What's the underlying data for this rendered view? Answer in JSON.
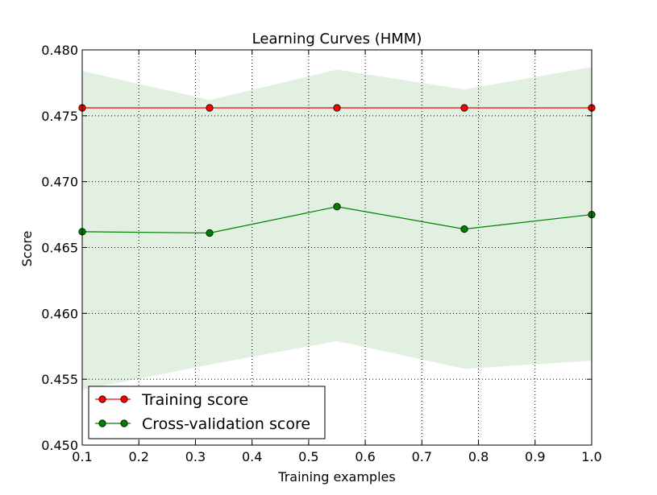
{
  "chart_data": {
    "type": "line",
    "title": "Learning Curves (HMM)",
    "xlabel": "Training examples",
    "ylabel": "Score",
    "xlim": [
      0.1,
      1.0
    ],
    "ylim": [
      0.45,
      0.48
    ],
    "xticks": [
      0.1,
      0.2,
      0.3,
      0.4,
      0.5,
      0.6,
      0.7,
      0.8,
      0.9,
      1.0
    ],
    "xtick_labels": [
      "0.1",
      "0.2",
      "0.3",
      "0.4",
      "0.5",
      "0.6",
      "0.7",
      "0.8",
      "0.9",
      "1.0"
    ],
    "yticks": [
      0.45,
      0.455,
      0.46,
      0.465,
      0.47,
      0.475,
      0.48
    ],
    "ytick_labels": [
      "0.450",
      "0.455",
      "0.460",
      "0.465",
      "0.470",
      "0.475",
      "0.480"
    ],
    "grid": true,
    "legend_position": "lower-left",
    "x": [
      0.1,
      0.325,
      0.55,
      0.775,
      1.0
    ],
    "series": [
      {
        "name": "Training score",
        "color": "#ff0000",
        "values": [
          0.4756,
          0.4756,
          0.4756,
          0.4756,
          0.4756
        ],
        "band_lower": [
          0.4756,
          0.4756,
          0.4756,
          0.4756,
          0.4756
        ],
        "band_upper": [
          0.4756,
          0.4756,
          0.4756,
          0.4756,
          0.4756
        ]
      },
      {
        "name": "Cross-validation score",
        "color": "#008000",
        "band_color": "#d9ecd9",
        "values": [
          0.4662,
          0.4661,
          0.4681,
          0.4664,
          0.4675
        ],
        "band_lower": [
          0.4542,
          0.4561,
          0.4579,
          0.4558,
          0.4564
        ],
        "band_upper": [
          0.4784,
          0.4762,
          0.4785,
          0.477,
          0.4787
        ]
      }
    ]
  }
}
